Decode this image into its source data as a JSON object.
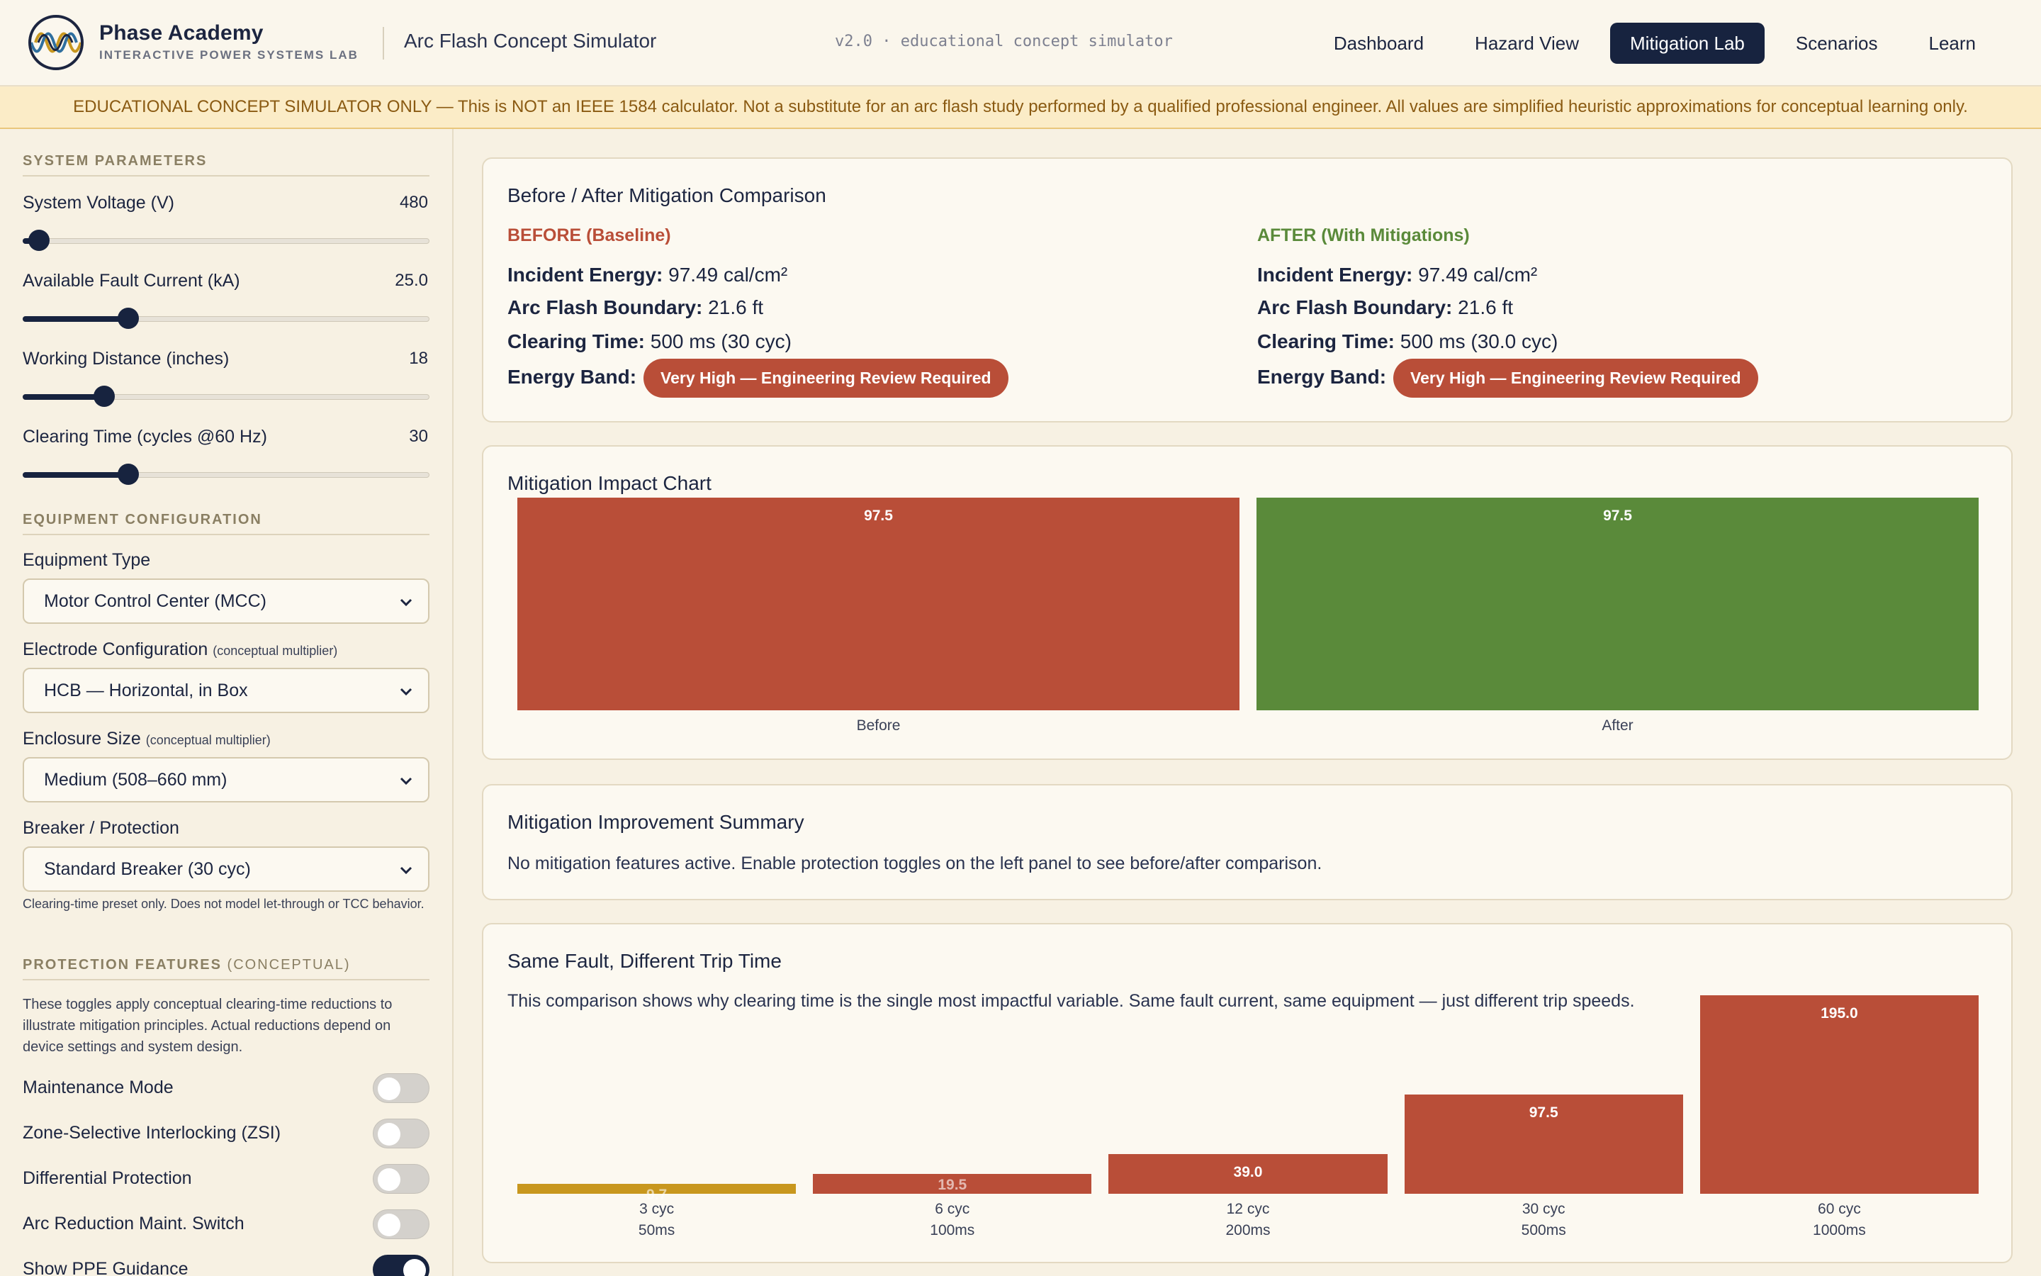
{
  "header": {
    "brand_name": "Phase Academy",
    "brand_sub": "INTERACTIVE POWER SYSTEMS LAB",
    "app_title": "Arc Flash Concept Simulator",
    "version": "v2.0 · educational concept simulator",
    "nav": [
      "Dashboard",
      "Hazard View",
      "Mitigation Lab",
      "Scenarios",
      "Learn"
    ],
    "active_nav": "Mitigation Lab"
  },
  "disclaimer": "EDUCATIONAL CONCEPT SIMULATOR ONLY — This is NOT an IEEE 1584 calculator. Not a substitute for an arc flash study performed by a qualified professional engineer. All values are simplified heuristic approximations for conceptual learning only.",
  "sidebar": {
    "system_title": "SYSTEM PARAMETERS",
    "params": [
      {
        "label": "System Voltage (V)",
        "value": "480",
        "fraction": 0.04
      },
      {
        "label": "Available Fault Current (kA)",
        "value": "25.0",
        "fraction": 0.26
      },
      {
        "label": "Working Distance (inches)",
        "value": "18",
        "fraction": 0.2
      },
      {
        "label": "Clearing Time (cycles @60 Hz)",
        "value": "30",
        "fraction": 0.26
      }
    ],
    "equipment_title": "EQUIPMENT CONFIGURATION",
    "equipment_type_label": "Equipment Type",
    "equipment_type_value": "Motor Control Center (MCC)",
    "electrode_label": "Electrode Configuration",
    "electrode_note": "(conceptual multiplier)",
    "electrode_value": "HCB — Horizontal, in Box",
    "enclosure_label": "Enclosure Size",
    "enclosure_note": "(conceptual multiplier)",
    "enclosure_value": "Medium (508–660 mm)",
    "breaker_label": "Breaker / Protection",
    "breaker_value": "Standard Breaker (30 cyc)",
    "breaker_note": "Clearing-time preset only. Does not model let-through or TCC behavior.",
    "protection_title": "PROTECTION FEATURES",
    "protection_title_muted": "(CONCEPTUAL)",
    "protection_note": "These toggles apply conceptual clearing-time reductions to illustrate mitigation principles. Actual reductions depend on device settings and system design.",
    "toggles": [
      {
        "label": "Maintenance Mode",
        "on": false
      },
      {
        "label": "Zone-Selective Interlocking (ZSI)",
        "on": false
      },
      {
        "label": "Differential Protection",
        "on": false
      },
      {
        "label": "Arc Reduction Maint. Switch",
        "on": false
      },
      {
        "label": "Show PPE Guidance",
        "on": true
      }
    ]
  },
  "comparison": {
    "title": "Before / After Mitigation Comparison",
    "before_head": "BEFORE (Baseline)",
    "after_head": "AFTER (With Mitigations)",
    "labels": {
      "energy": "Incident Energy:",
      "boundary": "Arc Flash Boundary:",
      "clearing": "Clearing Time:",
      "band": "Energy Band:"
    },
    "before": {
      "energy": "97.49 cal/cm²",
      "boundary": "21.6 ft",
      "clearing": "500 ms (30 cyc)",
      "band": "Very High — Engineering Review Required"
    },
    "after": {
      "energy": "97.49 cal/cm²",
      "boundary": "21.6 ft",
      "clearing": "500 ms (30.0 cyc)",
      "band": "Very High — Engineering Review Required"
    },
    "colors": {
      "before": "#b94e38",
      "after": "#5a8a3a"
    }
  },
  "impact": {
    "title": "Mitigation Impact Chart"
  },
  "summary": {
    "title": "Mitigation Improvement Summary",
    "text": "No mitigation features active. Enable protection toggles on the left panel to see before/after comparison."
  },
  "trip": {
    "title": "Same Fault, Different Trip Time",
    "text": "This comparison shows why clearing time is the single most impactful variable. Same fault current, same equipment — just different trip speeds."
  },
  "chart_data": [
    {
      "type": "bar",
      "title": "Mitigation Impact Chart",
      "categories": [
        "Before",
        "After"
      ],
      "values": [
        97.5,
        97.5
      ],
      "value_labels": [
        "97.5",
        "97.5"
      ],
      "colors": [
        "#b94e38",
        "#5a8a3a"
      ],
      "ylim": [
        0,
        97.5
      ]
    },
    {
      "type": "bar",
      "title": "Same Fault, Different Trip Time",
      "categories": [
        "3 cyc",
        "6 cyc",
        "12 cyc",
        "30 cyc",
        "60 cyc"
      ],
      "sublabels": [
        "50ms",
        "100ms",
        "200ms",
        "500ms",
        "1000ms"
      ],
      "values": [
        9.7,
        19.5,
        39.0,
        97.5,
        195.0
      ],
      "value_labels": [
        "9.7",
        "19.5",
        "39.0",
        "97.5",
        "195.0"
      ],
      "colors": [
        "#c8971e",
        "#b94e38",
        "#b94e38",
        "#b94e38",
        "#b94e38"
      ],
      "ylim": [
        0,
        195.0
      ]
    }
  ]
}
